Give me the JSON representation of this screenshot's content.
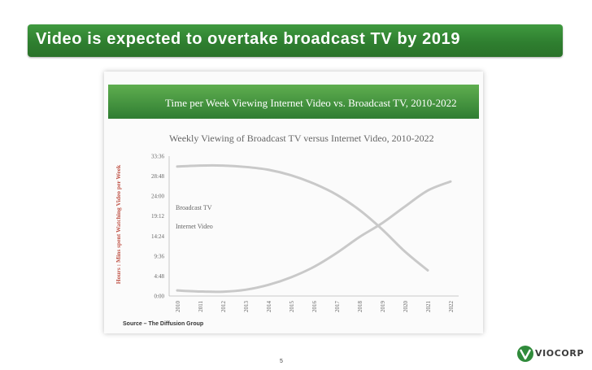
{
  "slide": {
    "title": "Video is expected to overtake broadcast TV by 2019",
    "source": "Source – The Diffusion Group",
    "page_number": "5",
    "logo_text": "VIOCORP",
    "accent_color": "#2f7f30"
  },
  "chart_data": {
    "type": "line",
    "banner": "Time per Week Viewing Internet Video vs. Broadcast TV, 2010-2022",
    "title": "Weekly Viewing of Broadcast TV versus Internet Video, 2010-2022",
    "ylabel": "Hours : Mins spent Watching Video per Week",
    "xlabel": "",
    "categories": [
      "2010",
      "2011",
      "2012",
      "2013",
      "2014",
      "2015",
      "2016",
      "2017",
      "2018",
      "2019",
      "2020",
      "2021",
      "2022"
    ],
    "y_ticks": [
      "0:00",
      "4:48",
      "9:36",
      "14:24",
      "19:12",
      "24:00",
      "28:48",
      "33:36"
    ],
    "ylim_minutes": [
      0,
      2016
    ],
    "series": [
      {
        "name": "Broadcast TV",
        "values_minutes": [
          1866,
          1880,
          1880,
          1860,
          1820,
          1740,
          1620,
          1460,
          1240,
          960,
          640,
          370,
          null
        ]
      },
      {
        "name": "Internet Video",
        "values_minutes": [
          80,
          65,
          62,
          90,
          160,
          270,
          420,
          620,
          850,
          1050,
          1290,
          1520,
          1650
        ]
      }
    ],
    "legend": [
      "Broadcast TV",
      "Internet Video"
    ],
    "grid": false
  }
}
